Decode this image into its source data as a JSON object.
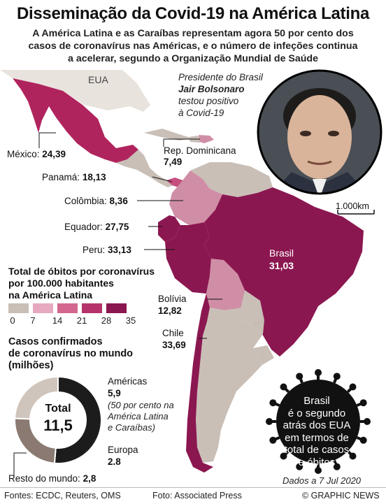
{
  "header": {
    "title": "Disseminação da Covid-19 na América Latina",
    "subtitle_lines": [
      "A América Latina e as Caraíbas representam agora 50 por cento dos",
      "casos de coronavírus nas Américas, e o número de infeções continua",
      "a acelerar, segundo a Organização Mundial de Saúde"
    ]
  },
  "map": {
    "usa_label": "EUA",
    "scale_label": "1.000km",
    "countries": [
      {
        "name": "México:",
        "value": "24,39",
        "color": "#b0245e"
      },
      {
        "name": "Rep. Dominicana",
        "value": "7,49",
        "color": "#d08ea6"
      },
      {
        "name": "Panamá:",
        "value": "18,13",
        "color": "#c64f7e"
      },
      {
        "name": "Colômbia:",
        "value": "8,36",
        "color": "#d08ea6"
      },
      {
        "name": "Equador:",
        "value": "27,75",
        "color": "#8b1751"
      },
      {
        "name": "Peru:",
        "value": "33,13",
        "color": "#8b1751"
      },
      {
        "name": "Brasil",
        "value": "31,03",
        "color": "#8b1751"
      },
      {
        "name": "Bolívia",
        "value": "12,82",
        "color": "#d08ea6"
      },
      {
        "name": "Chile",
        "value": "33,69",
        "color": "#8b1751"
      }
    ]
  },
  "president_note": {
    "line1": "Presidente do Brasil",
    "line2": "Jair Bolsonaro",
    "line3": "testou positivo",
    "line4": "à Covid-19"
  },
  "deaths_legend": {
    "title_lines": [
      "Total de óbitos por coronavírus",
      "por 100.000 habitantes",
      "na América Latina"
    ],
    "ticks": [
      "0",
      "7",
      "14",
      "21",
      "28",
      "35"
    ],
    "colors": [
      "#c9bfb7",
      "#e6a9bf",
      "#d3678f",
      "#b5336a",
      "#8b1751"
    ]
  },
  "cases": {
    "title_lines": [
      "Casos confirmados",
      "de coronavírus no mundo",
      "(milhões)"
    ],
    "total_label": "Total",
    "total_value": "11,5",
    "americas_label": "Américas",
    "americas_value": "5,9",
    "americas_note": [
      "(50 por cento na",
      "América Latina",
      "e Caraíbas)"
    ],
    "europe_label": "Europa",
    "europe_value": "2.8",
    "rest_label": "Resto do mundo:",
    "rest_value": "2,8",
    "segments": [
      {
        "name": "Américas",
        "value": 5.9,
        "color": "#1c1c1c"
      },
      {
        "name": "Europa",
        "value": 2.8,
        "color": "#8a7a72"
      },
      {
        "name": "Resto do mundo",
        "value": 2.8,
        "color": "#cfc5bd"
      }
    ]
  },
  "virus_note": [
    "Brasil",
    "é o segundo",
    "atrás dos EUA",
    "em termos de",
    "total de casos",
    "e óbitos"
  ],
  "date_note": "Dados a 7 Jul 2020",
  "footer": {
    "sources": "Fontes: ECDC, Reuters, OMS",
    "photo": "Foto: Associated Press",
    "credit": "© GRAPHIC NEWS"
  }
}
